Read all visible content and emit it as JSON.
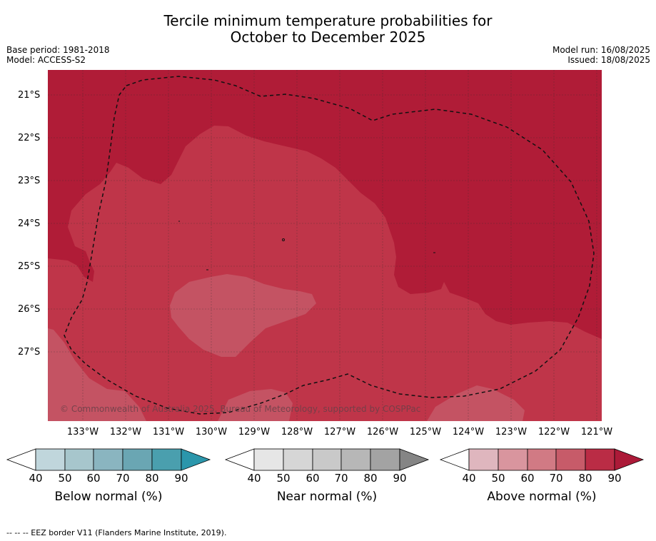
{
  "title_line1": "Tercile minimum temperature probabilities for",
  "title_line2": "October to December 2025",
  "base_period": "Base period: 1981-2018",
  "model": "Model: ACCESS-S2",
  "model_run": "Model run: 16/08/2025",
  "issued": "Issued: 18/08/2025",
  "map": {
    "lat_labels": [
      "21°S",
      "22°S",
      "23°S",
      "24°S",
      "25°S",
      "26°S",
      "27°S"
    ],
    "lon_labels": [
      "133°W",
      "132°W",
      "131°W",
      "130°W",
      "129°W",
      "128°W",
      "127°W",
      "126°W",
      "125°W",
      "124°W",
      "123°W",
      "122°W",
      "121°W"
    ],
    "copyright": "© Commonwealth of Australia 2025, Bureau of Meteorology, supported by COSPPac",
    "colors": {
      "dark": "#b01c37",
      "mid": "#bf3549",
      "light": "#c45363",
      "border": "#111111"
    }
  },
  "colorbars": [
    {
      "title": "Below normal (%)",
      "ticks": [
        "40",
        "50",
        "60",
        "70",
        "80",
        "90"
      ],
      "colors": [
        "#c0d6dc",
        "#a7c6cc",
        "#8ab5c0",
        "#6aa6b3",
        "#4a9fae",
        "#2b96ab"
      ]
    },
    {
      "title": "Near normal (%)",
      "ticks": [
        "40",
        "50",
        "60",
        "70",
        "80",
        "90"
      ],
      "colors": [
        "#e6e6e6",
        "#d6d6d6",
        "#c9c9c9",
        "#b7b7b7",
        "#a3a3a3",
        "#858585"
      ]
    },
    {
      "title": "Above normal (%)",
      "ticks": [
        "40",
        "50",
        "60",
        "70",
        "80",
        "90"
      ],
      "colors": [
        "#dfb6be",
        "#d9959e",
        "#d17a84",
        "#c75b69",
        "#ba2c45",
        "#ac1a38"
      ]
    }
  ],
  "footnote": "--  --  -- EEZ border V11 (Flanders Marine Institute, 2019)."
}
